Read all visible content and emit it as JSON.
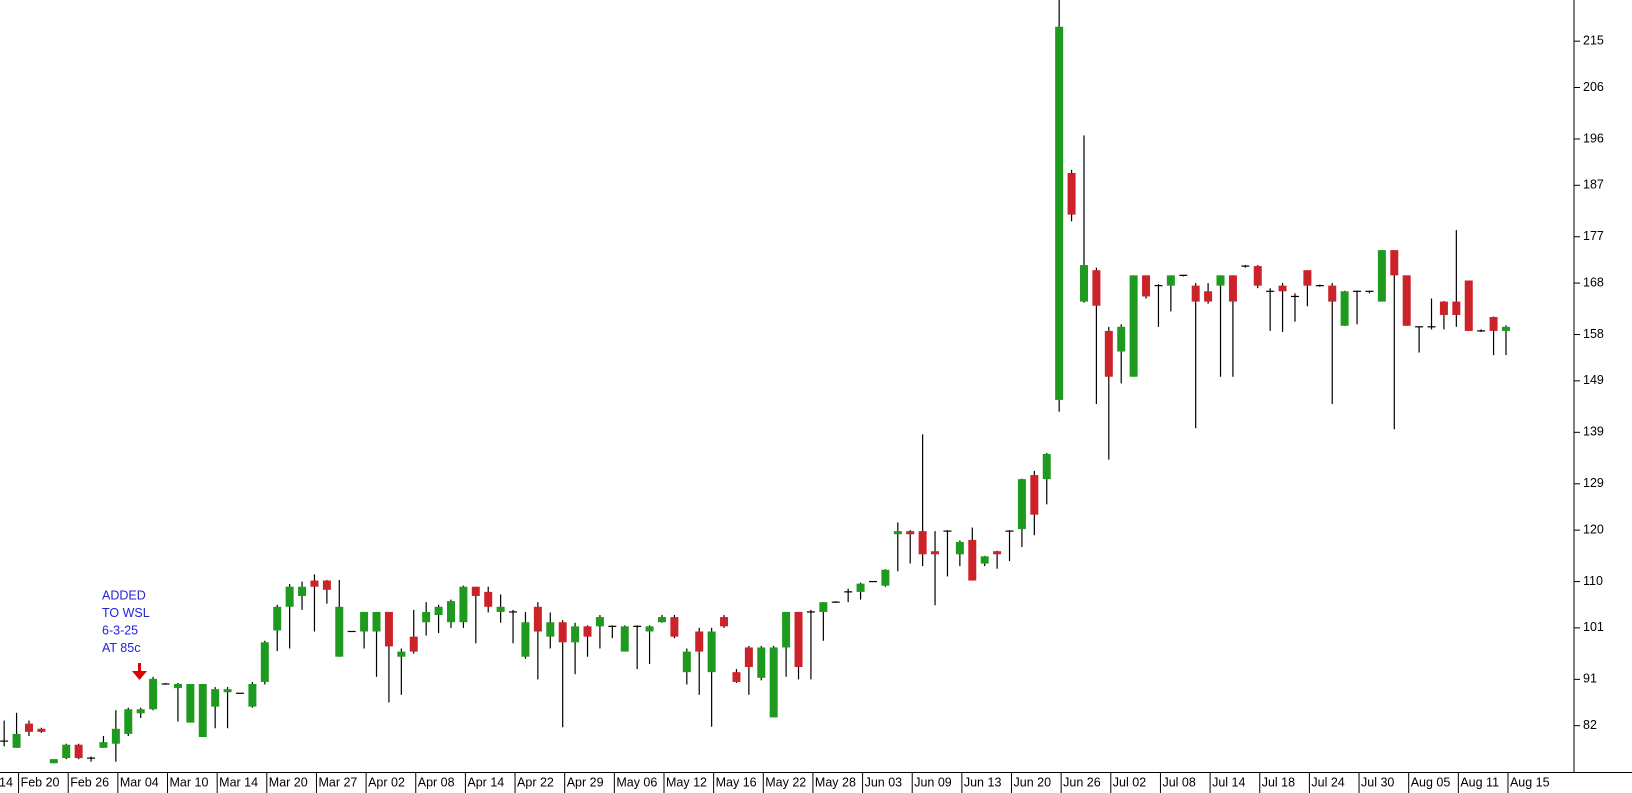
{
  "chart_data": {
    "type": "candlestick",
    "x_edge_label": "14",
    "categories": [
      null,
      "Feb 20",
      null,
      null,
      null,
      "Feb 26",
      null,
      null,
      null,
      "Mar 04",
      null,
      null,
      null,
      "Mar 10",
      null,
      null,
      null,
      "Mar 14",
      null,
      null,
      null,
      "Mar 20",
      null,
      null,
      null,
      "Mar 27",
      null,
      null,
      null,
      "Apr 02",
      null,
      null,
      null,
      "Apr 08",
      null,
      null,
      null,
      "Apr 14",
      null,
      null,
      null,
      "Apr 22",
      null,
      null,
      null,
      "Apr 29",
      null,
      null,
      null,
      "May 06",
      null,
      null,
      null,
      "May 12",
      null,
      null,
      null,
      "May 16",
      null,
      null,
      null,
      "May 22",
      null,
      null,
      null,
      "May 28",
      null,
      null,
      null,
      "Jun 03",
      null,
      null,
      null,
      "Jun 09",
      null,
      null,
      null,
      "Jun 13",
      null,
      null,
      null,
      "Jun 20",
      null,
      null,
      null,
      "Jun 26",
      null,
      null,
      null,
      "Jul 02",
      null,
      null,
      null,
      "Jul 08",
      null,
      null,
      null,
      "Jul 14",
      null,
      null,
      null,
      "Jul 18",
      null,
      null,
      null,
      "Jul 24",
      null,
      null,
      null,
      "Jul 30",
      null,
      null,
      null,
      "Aug 05",
      null,
      null,
      null,
      "Aug 11",
      null,
      null,
      null,
      "Aug 15"
    ],
    "open": [
      79,
      77.7,
      82.4,
      81.4,
      74.7,
      75.7,
      78.3,
      75.7,
      77.7,
      78.5,
      80.4,
      84.4,
      85.2,
      90.1,
      89.3,
      82.6,
      79.8,
      85.7,
      88.5,
      88.3,
      85.7,
      90.5,
      100.5,
      105.1,
      107.2,
      110.2,
      110.2,
      95.4,
      100.3,
      100.3,
      100.3,
      104.1,
      95.4,
      99.3,
      102.1,
      103.5,
      102.1,
      102.1,
      109,
      108,
      104.1,
      104.1,
      95.4,
      105.1,
      99.3,
      102.1,
      98.2,
      101.3,
      101.3,
      101.3,
      96.4,
      101.3,
      100.3,
      102.1,
      103.1,
      92.4,
      100.3,
      92.4,
      103.1,
      92.4,
      97.2,
      91.3,
      83.6,
      97.2,
      104.1,
      104.1,
      104.1,
      106,
      108,
      108,
      110,
      109.2,
      119.2,
      119.8,
      119.8,
      115.9,
      119.8,
      115.3,
      118.1,
      113.5,
      115.9,
      119.8,
      120.2,
      130.7,
      129.9,
      145.3,
      189.4,
      164.4,
      170.5,
      158.7,
      154.7,
      149.8,
      169.5,
      167.5,
      167.5,
      169.5,
      167.5,
      166.4,
      167.5,
      169.5,
      171.3,
      171.3,
      166.4,
      167.5,
      165.4,
      170.5,
      167.5,
      167.5,
      159.7,
      166.4,
      166.4,
      164.4,
      174.4,
      169.5,
      159.5,
      159.5,
      164.4,
      164.4,
      168.5,
      158.7,
      161.4,
      158.7
    ],
    "high": [
      83,
      84.5,
      83,
      81.6,
      75.5,
      78.5,
      78.5,
      76,
      80,
      85,
      85.5,
      85.5,
      91.5,
      90.3,
      90.3,
      90.1,
      90.1,
      89.5,
      89.5,
      88.3,
      90.5,
      98.5,
      105.5,
      109.5,
      110,
      111.4,
      110.3,
      110.3,
      100.3,
      104.1,
      104.1,
      104.1,
      97,
      104.5,
      106,
      105.5,
      106.5,
      109.2,
      109,
      109,
      107.5,
      104.5,
      104.1,
      106,
      104,
      102.5,
      102,
      101.5,
      103.5,
      101.5,
      101.5,
      101.5,
      101.5,
      103.5,
      103.5,
      97,
      101,
      101,
      103.5,
      93,
      97.5,
      97.5,
      97.5,
      104.1,
      104.1,
      104.5,
      106,
      106.2,
      108.6,
      109.8,
      110.1,
      112.4,
      121.5,
      120,
      138.6,
      119.8,
      120,
      118,
      120.5,
      115,
      116,
      120,
      130,
      131.5,
      135,
      223,
      190,
      196.7,
      171,
      159.5,
      160,
      169.5,
      169.5,
      167.8,
      169.5,
      169.6,
      168,
      168,
      169.5,
      169.5,
      171.5,
      171.5,
      167,
      168,
      166,
      170.5,
      167.7,
      168,
      166.5,
      166.5,
      166.5,
      174.4,
      174.4,
      169.5,
      159.6,
      165,
      164.5,
      178.3,
      168.5,
      159,
      161.5,
      159.8
    ],
    "low": [
      78,
      77.7,
      80,
      80.6,
      74.7,
      75.5,
      75.5,
      75,
      77.7,
      75,
      80,
      83.5,
      85,
      90,
      82.8,
      82.6,
      79.8,
      81.5,
      81.5,
      88.3,
      85.5,
      90,
      96.5,
      97,
      104.5,
      100.3,
      105.7,
      95.4,
      100.3,
      97,
      91.5,
      86.5,
      88,
      96,
      99.5,
      100,
      101,
      101,
      98,
      104,
      102,
      98,
      95,
      91,
      97,
      81.7,
      92,
      95.4,
      97,
      99,
      96.4,
      93,
      94,
      102,
      99,
      90,
      88,
      81.8,
      101,
      90.3,
      88,
      90.8,
      83.6,
      91.5,
      91,
      91,
      98.5,
      106,
      106,
      106.5,
      110,
      109,
      112,
      113.5,
      113,
      105.4,
      111,
      113,
      110.2,
      113,
      112.5,
      114,
      116.7,
      119,
      125,
      143,
      180,
      164.2,
      144.5,
      133.7,
      148.5,
      149.8,
      165,
      159.5,
      162.5,
      169.3,
      139.8,
      164,
      149.8,
      149.8,
      171,
      167,
      158.7,
      158.5,
      160.5,
      163.5,
      167.3,
      144.5,
      159.7,
      160,
      166,
      164.4,
      139.6,
      159.7,
      154.5,
      159,
      159,
      159.5,
      158.7,
      158.5,
      154,
      154
    ],
    "close": [
      79,
      80.4,
      80.8,
      80.8,
      75.5,
      78.3,
      75.7,
      75.7,
      78.8,
      81.4,
      85.2,
      85.2,
      91.1,
      90.1,
      90.1,
      90.1,
      90.1,
      89.1,
      89.1,
      88.3,
      90.1,
      98.2,
      105.1,
      109,
      109,
      109,
      108.4,
      105.1,
      100.3,
      104.1,
      104.1,
      97.4,
      96.4,
      96.4,
      104.1,
      105.1,
      106.2,
      109,
      107.2,
      105.1,
      105.1,
      104.1,
      102.1,
      100.3,
      102.1,
      98.2,
      101.3,
      99.3,
      103.1,
      101.3,
      101.3,
      101.3,
      101.3,
      103.1,
      99.3,
      96.4,
      96.4,
      100.3,
      101.3,
      90.5,
      93.4,
      97.2,
      97.2,
      104.1,
      93.4,
      104.1,
      106,
      106,
      108,
      109.6,
      110,
      112.3,
      119.8,
      119.2,
      115.3,
      115.3,
      119.8,
      117.7,
      110.2,
      114.9,
      115.3,
      119.8,
      129.9,
      123,
      134.8,
      217.8,
      181.3,
      171.5,
      163.6,
      149.8,
      159.5,
      169.5,
      165.4,
      167.5,
      169.5,
      169.5,
      164.4,
      164.4,
      169.5,
      164.4,
      171.3,
      167.5,
      166.4,
      166.4,
      165.4,
      167.5,
      167.5,
      164.4,
      166.4,
      166.4,
      166.4,
      174.4,
      169.5,
      159.7,
      159.5,
      159.5,
      161.8,
      161.8,
      158.7,
      158.7,
      158.7,
      159.5
    ],
    "up_color": "#1e9b1e",
    "down_color": "#cc2229",
    "ylim": [
      73,
      223
    ],
    "yticks": [
      82,
      91,
      101,
      110,
      120,
      129,
      139,
      149,
      158,
      168,
      177,
      187,
      196,
      206,
      215
    ],
    "annotation": [
      "ADDED",
      "TO WSL",
      "6-3-25",
      "AT 85c"
    ]
  }
}
